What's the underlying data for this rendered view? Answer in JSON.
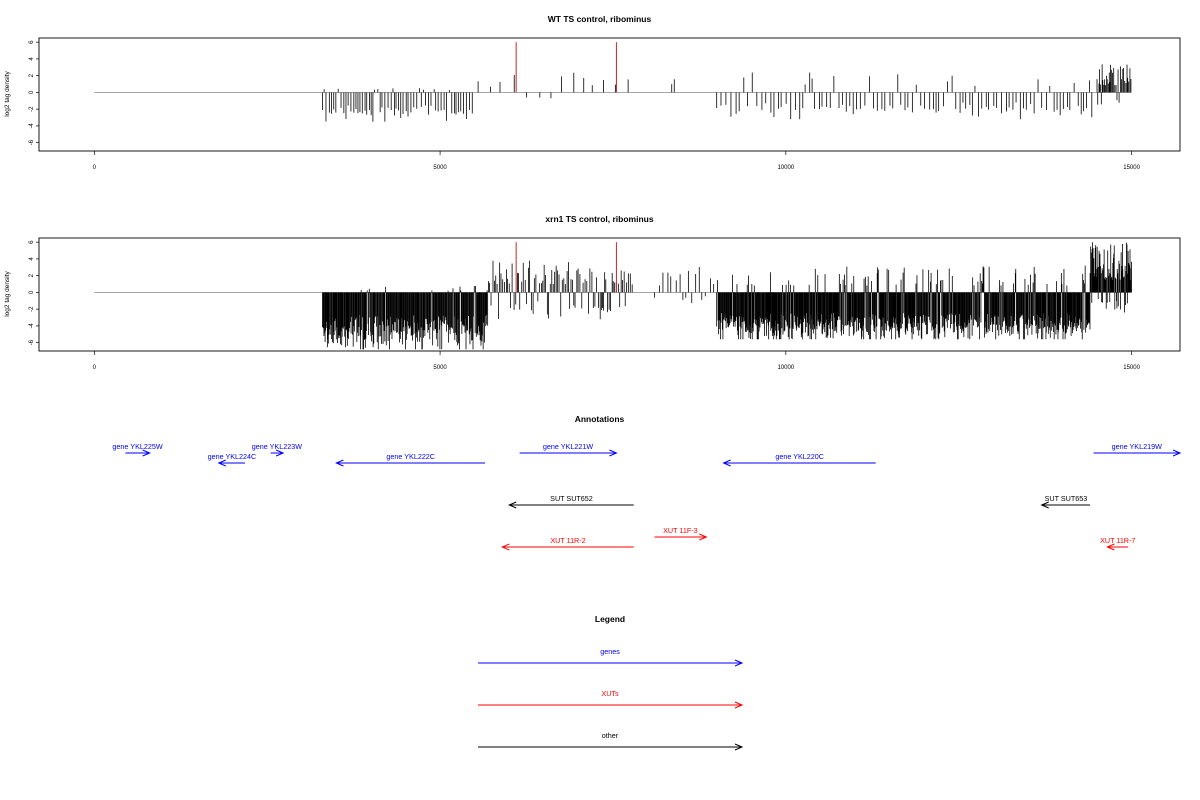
{
  "colors": {
    "genes": "#0000ff",
    "xuts": "#ff0000",
    "other": "#000000",
    "baseline": "#9a9a9a",
    "signal": "#000000",
    "highlight": "#cc2222"
  },
  "chart_data": [
    {
      "type": "bar",
      "title": "WT TS control, ribominus",
      "ylabel": "log2 tag density",
      "xlim": [
        -800,
        15700
      ],
      "ylim": [
        -7,
        6.5
      ],
      "xticks": [
        0,
        5000,
        10000,
        15000
      ],
      "yticks": [
        6,
        4,
        2,
        0,
        -2,
        -4,
        -6
      ],
      "baseline": [
        0,
        15000
      ],
      "highlights": [
        {
          "x": 6100,
          "y": 6
        },
        {
          "x": 7550,
          "y": 6
        }
      ],
      "segments": [
        {
          "start": 3300,
          "end": 5500,
          "pos_max": 0.6,
          "neg_min": -3.5,
          "neg_typ": -2.0,
          "pos_prob": 0.15,
          "step": 35,
          "seed": 11
        },
        {
          "start": 5550,
          "end": 7800,
          "pos_max": 2.4,
          "neg_min": -1.8,
          "neg_typ": -0.6,
          "pos_prob": 0.6,
          "step": 190,
          "seed": 12
        },
        {
          "start": 8350,
          "end": 8450,
          "pos_max": 1.6,
          "neg_min": 0,
          "neg_typ": 0,
          "pos_prob": 1,
          "step": 60,
          "seed": 13
        },
        {
          "start": 9000,
          "end": 14450,
          "pos_max": 2.6,
          "neg_min": -3.2,
          "neg_typ": -1.6,
          "pos_prob": 0.15,
          "step": 55,
          "seed": 14
        },
        {
          "start": 14500,
          "end": 15000,
          "pos_max": 3.4,
          "neg_min": -2.2,
          "neg_typ": -0.8,
          "pos_prob": 0.85,
          "step": 14,
          "seed": 15
        }
      ]
    },
    {
      "type": "bar",
      "title": "xrn1 TS control, ribominus",
      "ylabel": "log2 tag density",
      "xlim": [
        -800,
        15700
      ],
      "ylim": [
        -7,
        6.5
      ],
      "xticks": [
        0,
        5000,
        10000,
        15000
      ],
      "yticks": [
        6,
        4,
        2,
        0,
        -2,
        -4,
        -6
      ],
      "baseline": [
        0,
        15000
      ],
      "highlights": [
        {
          "x": 6100,
          "y": 6
        },
        {
          "x": 7550,
          "y": 6
        }
      ],
      "segments": [
        {
          "start": 3300,
          "end": 5700,
          "pos_max": 0.8,
          "neg_min": -6.8,
          "neg_typ": -3.8,
          "pos_prob": 0.05,
          "step": 9,
          "seed": 21
        },
        {
          "start": 5700,
          "end": 7800,
          "pos_max": 3.8,
          "neg_min": -3.2,
          "neg_typ": -1.5,
          "pos_prob": 0.65,
          "step": 22,
          "seed": 22
        },
        {
          "start": 8100,
          "end": 9000,
          "pos_max": 3.2,
          "neg_min": -1.5,
          "neg_typ": -0.6,
          "pos_prob": 0.55,
          "step": 60,
          "seed": 23
        },
        {
          "start": 9000,
          "end": 14400,
          "pos_max": 3.2,
          "neg_min": -5.6,
          "neg_typ": -3.4,
          "pos_prob": 0.12,
          "step": 8,
          "seed": 24
        },
        {
          "start": 14400,
          "end": 15000,
          "pos_max": 6,
          "neg_min": -2.5,
          "neg_typ": -1.0,
          "pos_prob": 0.8,
          "step": 7,
          "seed": 25
        }
      ]
    },
    {
      "type": "annotation",
      "title": "Annotations",
      "xlim": [
        -800,
        15700
      ],
      "features": [
        {
          "label": "gene YKL225W",
          "start": 450,
          "end": 800,
          "strand": "+",
          "row": 0,
          "kind": "genes"
        },
        {
          "label": "gene YKL223W",
          "start": 2550,
          "end": 2730,
          "strand": "+",
          "row": 0,
          "kind": "genes"
        },
        {
          "label": "gene YKL224C",
          "start": 1800,
          "end": 2180,
          "strand": "-",
          "row": 1,
          "kind": "genes"
        },
        {
          "label": "gene YKL222C",
          "start": 3500,
          "end": 5650,
          "strand": "-",
          "row": 1,
          "kind": "genes"
        },
        {
          "label": "gene YKL221W",
          "start": 6150,
          "end": 7550,
          "strand": "+",
          "row": 0,
          "kind": "genes"
        },
        {
          "label": "gene YKL220C",
          "start": 9100,
          "end": 11300,
          "strand": "-",
          "row": 1,
          "kind": "genes"
        },
        {
          "label": "gene YKL219W",
          "start": 14450,
          "end": 15700,
          "strand": "+",
          "row": 0,
          "kind": "genes"
        },
        {
          "label": "SUT SUT652",
          "start": 6000,
          "end": 7800,
          "strand": "-",
          "row": 2,
          "kind": "other"
        },
        {
          "label": "SUT SUT653",
          "start": 13700,
          "end": 14400,
          "strand": "-",
          "row": 2,
          "kind": "other"
        },
        {
          "label": "XUT 11F-3",
          "start": 8100,
          "end": 8850,
          "strand": "+",
          "row": 3,
          "kind": "xuts"
        },
        {
          "label": "XUT 11R-2",
          "start": 5900,
          "end": 7800,
          "strand": "-",
          "row": 4,
          "kind": "xuts"
        },
        {
          "label": "XUT 11R-7",
          "start": 14650,
          "end": 14950,
          "strand": "-",
          "row": 4,
          "kind": "xuts"
        }
      ]
    },
    {
      "type": "legend",
      "title": "Legend",
      "entries": [
        {
          "label": "genes",
          "kind": "genes"
        },
        {
          "label": "XUTs",
          "kind": "xuts"
        },
        {
          "label": "other",
          "kind": "other"
        }
      ]
    }
  ]
}
